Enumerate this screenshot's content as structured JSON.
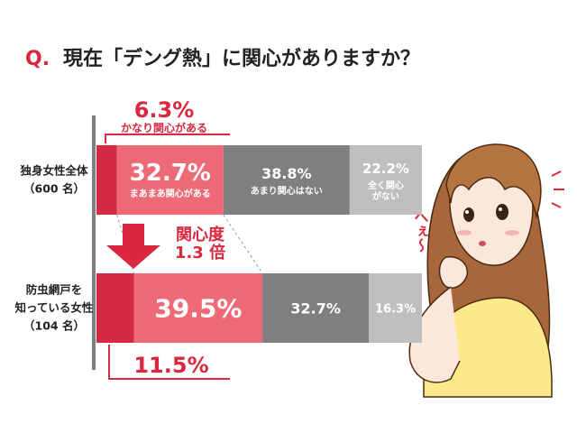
{
  "title": {
    "prefix": "Q.",
    "text": "現在「デング熱」に関心がありますか？"
  },
  "colors": {
    "dark_red": "#d42a43",
    "pink": "#ee6a77",
    "gray_dark": "#7f7f7f",
    "gray_light": "#bfbfbf",
    "accent": "#d9283f",
    "axis": "#808080"
  },
  "chart_data": {
    "type": "bar",
    "orientation": "horizontal",
    "stacked": "100%",
    "categories": [
      {
        "name_lines": [
          "独身女性全体",
          "（600 名）"
        ]
      },
      {
        "name_lines": [
          "防虫網戸を",
          "知っている女性",
          "（104 名）"
        ]
      }
    ],
    "series": [
      {
        "name": "かなり関心がある",
        "values": [
          6.3,
          11.5
        ]
      },
      {
        "name": "まあまあ関心がある",
        "values": [
          32.7,
          39.5
        ]
      },
      {
        "name": "あまり関心はない",
        "values": [
          38.8,
          32.7
        ]
      },
      {
        "name": "全く関心がない",
        "values": [
          22.2,
          16.3
        ]
      }
    ],
    "callout": {
      "label_lines": [
        "関心度",
        "1.3 倍"
      ]
    }
  },
  "labels": {
    "row1": {
      "s0_pct": "6.3%",
      "s0_name": "かなり関心がある",
      "s1_pct": "32.7%",
      "s1_name": "まあまあ関心がある",
      "s2_pct": "38.8%",
      "s2_name": "あまり関心はない",
      "s3_pct": "22.2%",
      "s3_name_lines": [
        "全く関心",
        "がない"
      ]
    },
    "row2": {
      "s0_pct": "11.5%",
      "s1_pct": "39.5%",
      "s2_pct": "32.7%",
      "s3_pct": "16.3%"
    }
  },
  "illustration": {
    "exclamation": "へぇ～"
  }
}
